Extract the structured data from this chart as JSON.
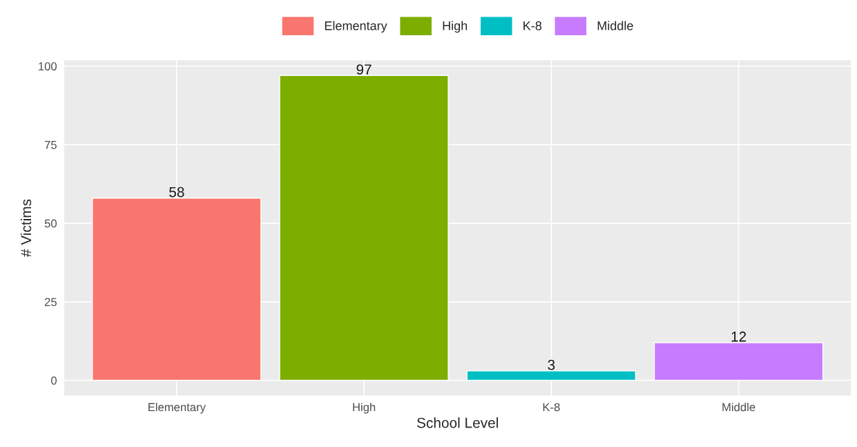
{
  "chart_data": {
    "type": "bar",
    "xlabel": "School Level",
    "ylabel": "# Victims",
    "categories": [
      "Elementary",
      "High",
      "K-8",
      "Middle"
    ],
    "series": [
      {
        "name": "Elementary",
        "color": "#f8766d",
        "values": [
          58,
          null,
          null,
          null
        ]
      },
      {
        "name": "High",
        "color": "#7cae00",
        "values": [
          null,
          97,
          null,
          null
        ]
      },
      {
        "name": "K-8",
        "color": "#00bfc4",
        "values": [
          null,
          null,
          3,
          null
        ]
      },
      {
        "name": "Middle",
        "color": "#c77cff",
        "values": [
          null,
          null,
          null,
          12
        ]
      }
    ],
    "data_labels": true,
    "ylim": [
      -4.85,
      101.85
    ],
    "yticks": [
      0,
      25,
      50,
      75,
      100
    ],
    "grid": true,
    "legend": "top"
  }
}
